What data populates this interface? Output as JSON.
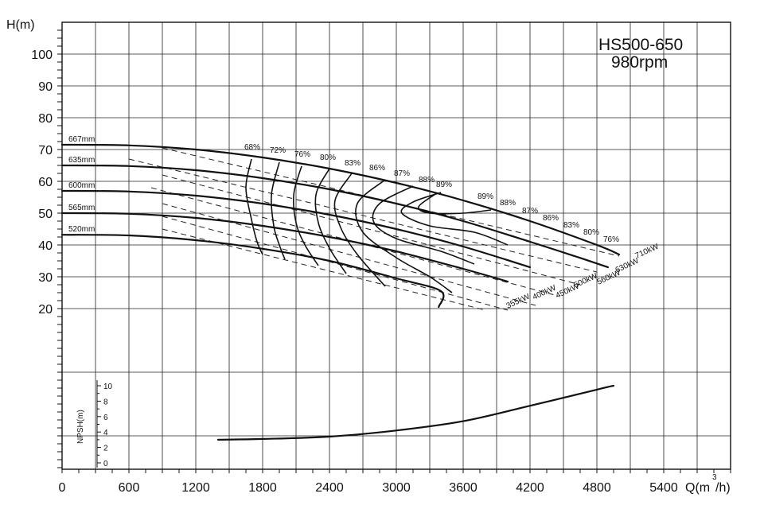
{
  "chart_data": {
    "type": "line",
    "title": "HS500-650",
    "subtitle": "980rpm",
    "x_axis": {
      "label": "Q(m³/h)",
      "label_main": "Q(m",
      "label_sup": "3",
      "label_end": "/h)",
      "range": [
        0,
        6000
      ],
      "ticks": [
        0,
        600,
        1200,
        1800,
        2400,
        3000,
        3600,
        4200,
        4800,
        5400
      ],
      "grid_step": 300
    },
    "y_axis": {
      "label": "H(m)",
      "range": [
        -30,
        110
      ],
      "ticks": [
        20,
        30,
        40,
        50,
        60,
        70,
        80,
        90,
        100
      ],
      "grid_lines": [
        -20,
        0,
        20,
        30,
        40,
        50,
        60,
        70,
        80,
        90,
        100
      ]
    },
    "npsh_axis": {
      "label": "NPSH(m)",
      "range": [
        0,
        10
      ],
      "ticks": [
        0,
        2,
        4,
        6,
        8,
        10
      ]
    },
    "head_curves": [
      {
        "name": "667mm",
        "points": [
          [
            0,
            71.5
          ],
          [
            600,
            71.3
          ],
          [
            1200,
            70
          ],
          [
            1800,
            67.5
          ],
          [
            2400,
            64
          ],
          [
            3000,
            59.5
          ],
          [
            3600,
            54
          ],
          [
            4200,
            47.5
          ],
          [
            4800,
            40
          ],
          [
            5000,
            37
          ]
        ]
      },
      {
        "name": "635mm",
        "points": [
          [
            0,
            65
          ],
          [
            600,
            64.8
          ],
          [
            1200,
            63.5
          ],
          [
            1800,
            61
          ],
          [
            2400,
            57.5
          ],
          [
            3000,
            53
          ],
          [
            3600,
            47.5
          ],
          [
            4200,
            41
          ],
          [
            4600,
            36.5
          ],
          [
            4900,
            33
          ]
        ]
      },
      {
        "name": "600mm",
        "points": [
          [
            0,
            57
          ],
          [
            600,
            56.8
          ],
          [
            1200,
            55.5
          ],
          [
            1800,
            53
          ],
          [
            2400,
            49.5
          ],
          [
            3000,
            45
          ],
          [
            3600,
            39.5
          ],
          [
            4200,
            33
          ]
        ]
      },
      {
        "name": "565mm",
        "points": [
          [
            0,
            50
          ],
          [
            600,
            49.8
          ],
          [
            1200,
            48.5
          ],
          [
            1800,
            46
          ],
          [
            2400,
            42.5
          ],
          [
            3000,
            38
          ],
          [
            3600,
            32.5
          ],
          [
            4000,
            28.5
          ]
        ]
      },
      {
        "name": "520mm",
        "points": [
          [
            0,
            43.2
          ],
          [
            600,
            43
          ],
          [
            1200,
            41.5
          ],
          [
            1800,
            38.8
          ],
          [
            2400,
            35
          ],
          [
            3000,
            29.5
          ],
          [
            3400,
            25.5
          ],
          [
            3380,
            20.5
          ]
        ]
      }
    ],
    "efficiency_labels_left": [
      "68%",
      "72%",
      "76%",
      "80%",
      "83%",
      "86%",
      "87%",
      "88%",
      "89%"
    ],
    "efficiency_labels_right": [
      "89%",
      "88%",
      "87%",
      "86%",
      "83%",
      "80%",
      "76%"
    ],
    "power_lines": [
      "710kW",
      "630kW",
      "560kW",
      "500kW",
      "450kW",
      "400kW",
      "355kW"
    ],
    "npsh_curve": {
      "points": [
        [
          1400,
          3
        ],
        [
          1800,
          3.1
        ],
        [
          2400,
          3.4
        ],
        [
          3000,
          4.2
        ],
        [
          3600,
          5.4
        ],
        [
          4200,
          7.4
        ],
        [
          4800,
          9.5
        ],
        [
          4950,
          10
        ]
      ]
    }
  }
}
